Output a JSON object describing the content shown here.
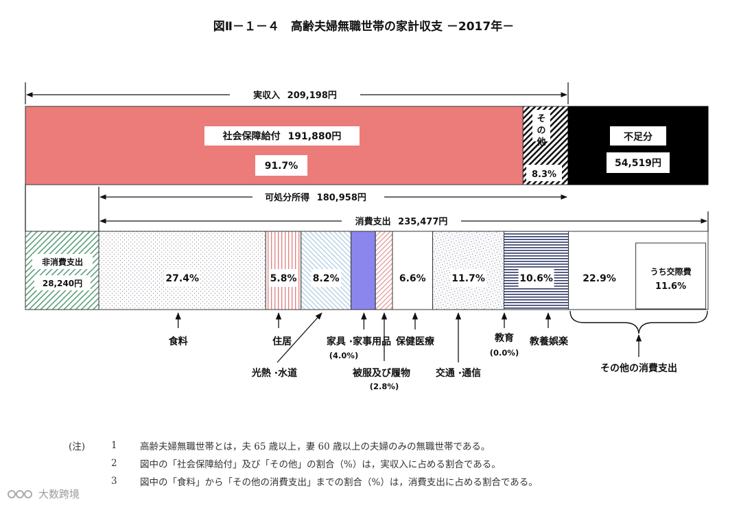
{
  "chart_data": {
    "type": "stacked-bar",
    "title": "図Ⅱ－１－４　高齢夫婦無職世帯の家計収支 －2017年－",
    "income": {
      "label": "実収入",
      "total_text": "209,198円",
      "total": 209198,
      "segments": [
        {
          "name": "社会保障給付",
          "amount": 191880,
          "amount_text": "191,880円",
          "percent": 91.7,
          "percent_text": "91.7%",
          "color": "#ec7c7a"
        },
        {
          "name": "その他",
          "percent": 8.3,
          "percent_text": "8.3%",
          "color": "hatched"
        }
      ],
      "deficit": {
        "name": "不足分",
        "amount": 54519,
        "amount_text": "54,519円",
        "color": "#000000"
      }
    },
    "disposable_income": {
      "label": "可処分所得",
      "amount": 180958,
      "amount_text": "180,958円"
    },
    "consumption": {
      "label": "消費支出",
      "amount": 235477,
      "amount_text": "235,477円",
      "non_consumption": {
        "name": "非消費支出",
        "amount": 28240,
        "amount_text": "28,240円"
      },
      "segments": [
        {
          "name": "食料",
          "percent": 27.4,
          "percent_text": "27.4%"
        },
        {
          "name": "住居",
          "percent": 5.8,
          "percent_text": "5.8%"
        },
        {
          "name": "光熱 ·水道",
          "percent": 8.2,
          "percent_text": "8.2%"
        },
        {
          "name": "家具 ·家事用品",
          "percent": 4.0,
          "percent_text": "(4.0%)",
          "color": "#8a86ee"
        },
        {
          "name": "被服及び履物",
          "percent": 2.8,
          "percent_text": "(2.8%)"
        },
        {
          "name": "保健医療",
          "percent": 6.6,
          "percent_text": "6.6%"
        },
        {
          "name": "交通 ·通信",
          "percent": 11.7,
          "percent_text": "11.7%"
        },
        {
          "name": "教育",
          "percent": 0.0,
          "percent_text": "(0.0%)"
        },
        {
          "name": "教養娯楽",
          "percent": 10.6,
          "percent_text": "10.6%"
        },
        {
          "name": "その他の消費支出",
          "percent": 22.9,
          "percent_text": "22.9%",
          "sub": {
            "name": "うち交際費",
            "percent": 11.6,
            "percent_text": "11.6%"
          }
        }
      ]
    }
  },
  "notes": {
    "tag": "(注)",
    "items": [
      {
        "num": "1",
        "text": "高齢夫婦無職世帯とは，夫 65 歳以上，妻 60 歳以上の夫婦のみの無職世帯である。"
      },
      {
        "num": "2",
        "text": "図中の「社会保障給付」及び「その他」の割合（%）は，実収入に占める割合である。"
      },
      {
        "num": "3",
        "text": "図中の「食料」から「その他の消費支出」までの割合（%）は，消費支出に占める割合である。"
      }
    ]
  },
  "watermark": "大数跨境"
}
